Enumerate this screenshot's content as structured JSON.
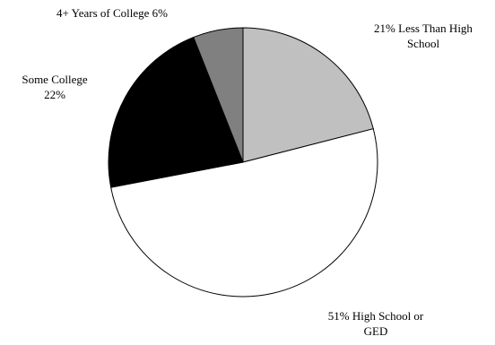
{
  "chart_data": {
    "type": "pie",
    "title": "",
    "slices": [
      {
        "label_lines": [
          "21%  Less Than High",
          "School"
        ],
        "value": 21,
        "color": "#c0c0c0"
      },
      {
        "label_lines": [
          "51%  High School or",
          "GED"
        ],
        "value": 51,
        "color": "#ffffff"
      },
      {
        "label_lines": [
          "Some College",
          "22%"
        ],
        "value": 22,
        "color": "#000000"
      },
      {
        "label_lines": [
          "4+ Years of College  6%"
        ],
        "value": 6,
        "color": "#808080"
      }
    ]
  }
}
